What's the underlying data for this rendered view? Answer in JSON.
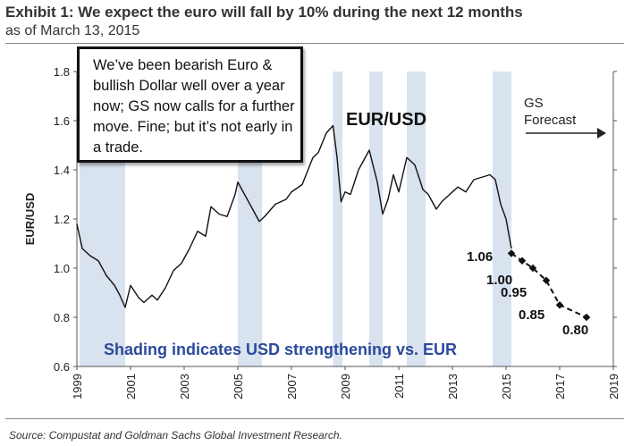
{
  "header": {
    "title": "Exhibit 1:  We expect the euro will fall by 10% during the next 12 months",
    "subtitle": "as of March 13, 2015"
  },
  "callout": "We’ve been bearish Euro & bullish Dollar well over a year now; GS now calls for a further move. Fine; but it’s not early in a trade.",
  "source": "Source: Compustat and Goldman Sachs Global Investment Research.",
  "colors": {
    "line": "#111111",
    "shading": "#d9e2ef",
    "shading_text": "#2b4a9b",
    "axis": "#555555"
  },
  "chart_data": {
    "type": "line",
    "title": "EUR/USD",
    "ylabel": "EUR/USD",
    "xlim": [
      1999,
      2019
    ],
    "ylim": [
      0.6,
      1.8
    ],
    "grid": false,
    "x_ticks": [
      "1999",
      "2001",
      "2003",
      "2005",
      "2007",
      "2009",
      "2011",
      "2013",
      "2015",
      "2017",
      "2019"
    ],
    "y_ticks": [
      "0.6",
      "0.8",
      "1.0",
      "1.2",
      "1.4",
      "1.6",
      "1.8"
    ],
    "shading_periods": [
      [
        1999.1,
        2000.8
      ],
      [
        2005.0,
        2005.9
      ],
      [
        2008.55,
        2008.9
      ],
      [
        2009.9,
        2010.4
      ],
      [
        2011.3,
        2012.0
      ],
      [
        2014.5,
        2015.2
      ]
    ],
    "shading_label": "Shading indicates USD strengthening vs. EUR",
    "forecast_label": "GS\nForecast",
    "series": [
      {
        "kind": "history",
        "x": [
          1999.0,
          1999.2,
          1999.5,
          1999.8,
          2000.1,
          2000.4,
          2000.6,
          2000.8,
          2001.0,
          2001.3,
          2001.5,
          2001.8,
          2002.0,
          2002.3,
          2002.6,
          2002.9,
          2003.2,
          2003.5,
          2003.8,
          2004.0,
          2004.3,
          2004.6,
          2004.9,
          2005.0,
          2005.4,
          2005.8,
          2006.0,
          2006.4,
          2006.8,
          2007.0,
          2007.4,
          2007.8,
          2008.0,
          2008.3,
          2008.55,
          2008.7,
          2008.85,
          2009.0,
          2009.2,
          2009.5,
          2009.9,
          2010.2,
          2010.4,
          2010.6,
          2010.8,
          2011.0,
          2011.3,
          2011.6,
          2011.9,
          2012.1,
          2012.4,
          2012.6,
          2012.9,
          2013.2,
          2013.5,
          2013.8,
          2014.1,
          2014.4,
          2014.6,
          2014.8,
          2015.0,
          2015.2
        ],
        "y": [
          1.18,
          1.08,
          1.05,
          1.03,
          0.97,
          0.93,
          0.89,
          0.84,
          0.93,
          0.88,
          0.86,
          0.89,
          0.87,
          0.92,
          0.99,
          1.02,
          1.08,
          1.15,
          1.13,
          1.25,
          1.22,
          1.21,
          1.3,
          1.35,
          1.27,
          1.19,
          1.21,
          1.26,
          1.28,
          1.31,
          1.34,
          1.45,
          1.47,
          1.55,
          1.58,
          1.45,
          1.27,
          1.31,
          1.3,
          1.4,
          1.48,
          1.35,
          1.22,
          1.28,
          1.38,
          1.31,
          1.45,
          1.42,
          1.32,
          1.3,
          1.24,
          1.27,
          1.3,
          1.33,
          1.31,
          1.36,
          1.37,
          1.38,
          1.36,
          1.26,
          1.2,
          1.08
        ]
      },
      {
        "kind": "forecast",
        "x": [
          2015.2,
          2015.6,
          2016.0,
          2016.5,
          2017.0,
          2018.0
        ],
        "y": [
          1.06,
          1.03,
          1.0,
          0.95,
          0.85,
          0.8
        ],
        "labels": [
          "1.06",
          "1.00",
          "0.95",
          "0.85",
          "0.80"
        ]
      }
    ]
  }
}
